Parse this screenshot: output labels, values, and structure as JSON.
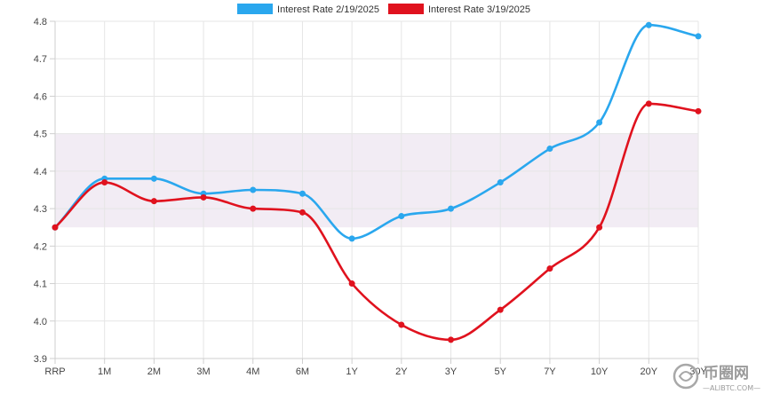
{
  "chart_data": {
    "type": "line",
    "title": "",
    "xlabel": "",
    "ylabel": "",
    "categories": [
      "RRP",
      "1M",
      "2M",
      "3M",
      "4M",
      "6M",
      "1Y",
      "2Y",
      "3Y",
      "5Y",
      "7Y",
      "10Y",
      "20Y",
      "30Y"
    ],
    "ylim": [
      3.9,
      4.8
    ],
    "yticks": [
      "3.9",
      "4.0",
      "4.1",
      "4.2",
      "4.3",
      "4.4",
      "4.5",
      "4.6",
      "4.7",
      "4.8"
    ],
    "grid": true,
    "legend_position": "top-center",
    "band": {
      "from": 4.25,
      "to": 4.5,
      "color": "#f2ecf4"
    },
    "series": [
      {
        "name": "Interest Rate 2/19/2025",
        "color": "#2aa7ee",
        "values": [
          4.25,
          4.38,
          4.38,
          4.34,
          4.35,
          4.34,
          4.22,
          4.28,
          4.3,
          4.37,
          4.46,
          4.53,
          4.79,
          4.76
        ]
      },
      {
        "name": "Interest Rate 3/19/2025",
        "color": "#e0121e",
        "values": [
          4.25,
          4.37,
          4.32,
          4.33,
          4.3,
          4.29,
          4.1,
          3.99,
          3.95,
          4.03,
          4.14,
          4.25,
          4.58,
          4.56
        ]
      }
    ]
  },
  "watermark": {
    "text": "币圈网",
    "subtext": "—ALIBTC.COM—"
  }
}
